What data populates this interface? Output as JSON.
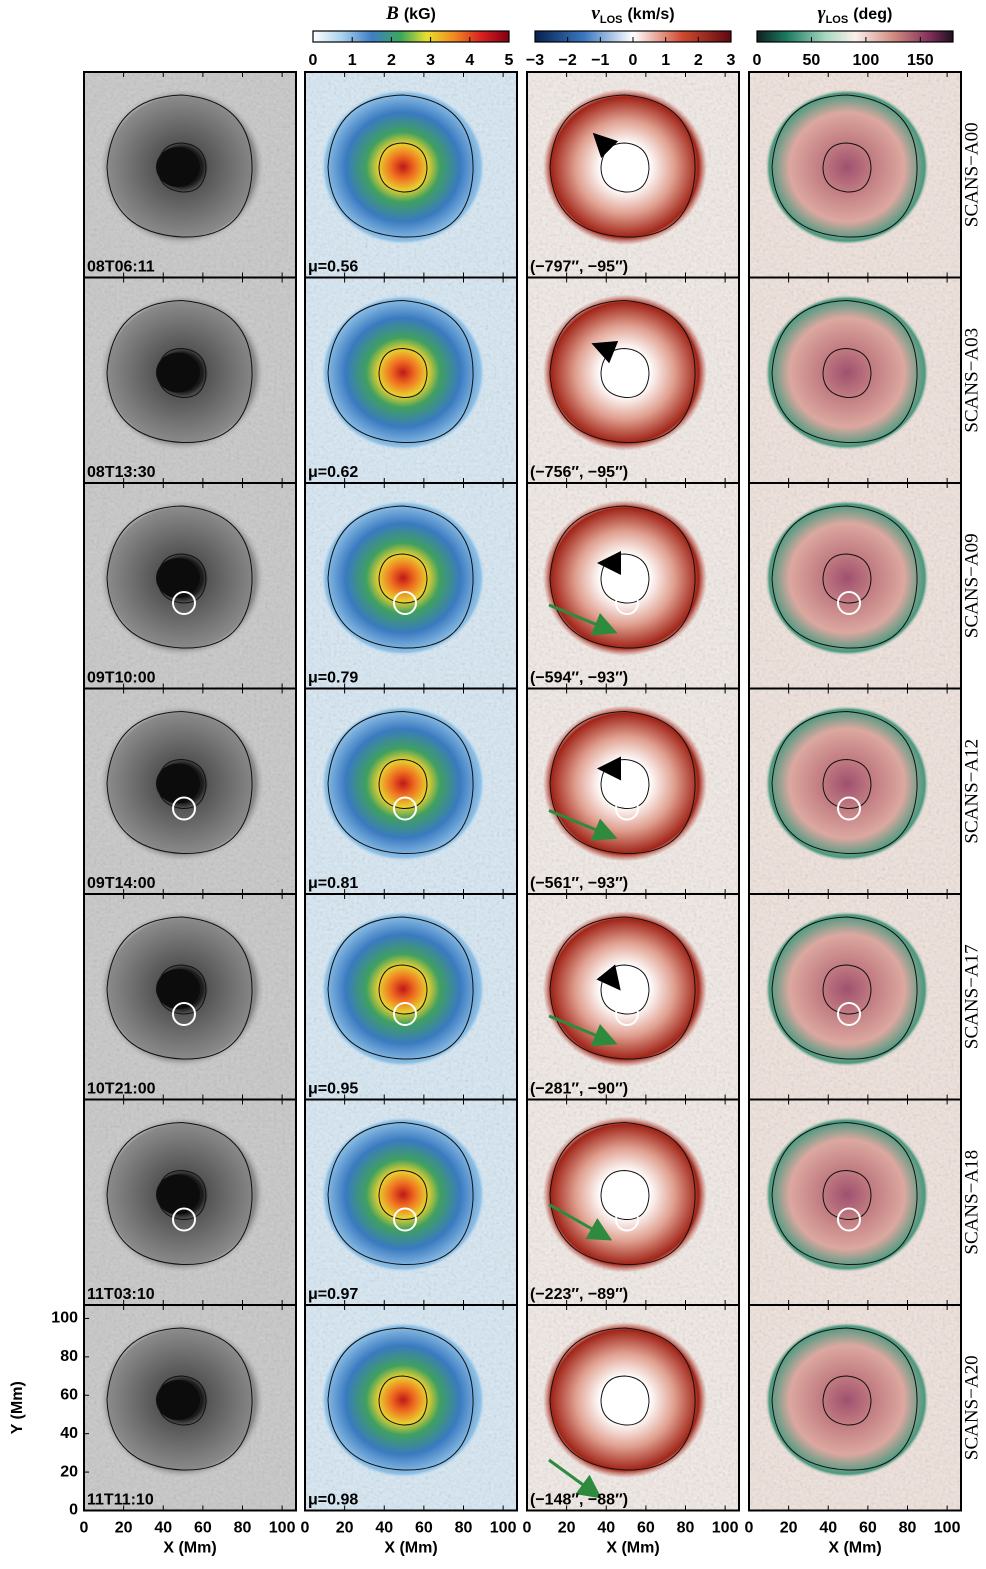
{
  "colorbars": [
    {
      "symbol": "B",
      "unit": "(kG)",
      "range": [
        0,
        5
      ],
      "ticks": [
        0,
        1,
        2,
        3,
        4,
        5
      ]
    },
    {
      "symbol": "v",
      "subscript": "LOS",
      "unit": "(km/s)",
      "range": [
        -3,
        3
      ],
      "ticks": [
        {
          "value": -3,
          "label": "−3"
        },
        {
          "value": -2,
          "label": "−2"
        },
        {
          "value": -1,
          "label": "−1"
        },
        0,
        1,
        2,
        3
      ]
    },
    {
      "symbol": "γ",
      "subscript": "LOS",
      "unit": "(deg)",
      "range": [
        0,
        180
      ],
      "ticks": [
        0,
        50,
        100,
        150
      ]
    }
  ],
  "rows": [
    {
      "label": "SCANS−A00",
      "time": "08T06:11",
      "mu": "μ=0.56",
      "position": "(−797″, −95″)"
    },
    {
      "label": "SCANS−A03",
      "time": "08T13:30",
      "mu": "μ=0.62",
      "position": "(−756″, −95″)"
    },
    {
      "label": "SCANS−A09",
      "time": "09T10:00",
      "mu": "μ=0.79",
      "position": "(−594″, −93″)"
    },
    {
      "label": "SCANS−A12",
      "time": "09T14:00",
      "mu": "μ=0.81",
      "position": "(−561″, −93″)"
    },
    {
      "label": "SCANS−A17",
      "time": "10T21:00",
      "mu": "μ=0.95",
      "position": "(−281″, −90″)"
    },
    {
      "label": "SCANS−A18",
      "time": "11T03:10",
      "mu": "μ=0.97",
      "position": "(−223″, −89″)"
    },
    {
      "label": "SCANS−A20",
      "time": "11T11:10",
      "mu": "μ=0.98",
      "position": "(−148″, −88″)"
    }
  ],
  "x_axis": {
    "label": "X (Mm)",
    "range": [
      0,
      107
    ],
    "ticks": [
      0,
      20,
      40,
      60,
      80,
      100
    ]
  },
  "y_axis": {
    "label": "Y (Mm)",
    "range": [
      0,
      107
    ],
    "ticks": [
      0,
      20,
      40,
      60,
      80,
      100
    ]
  }
}
